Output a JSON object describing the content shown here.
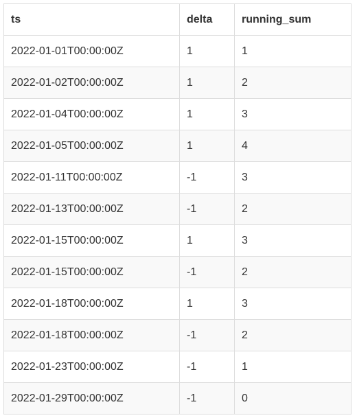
{
  "table": {
    "columns": [
      "ts",
      "delta",
      "running_sum"
    ],
    "rows": [
      [
        "2022-01-01T00:00:00Z",
        "1",
        "1"
      ],
      [
        "2022-01-02T00:00:00Z",
        "1",
        "2"
      ],
      [
        "2022-01-04T00:00:00Z",
        "1",
        "3"
      ],
      [
        "2022-01-05T00:00:00Z",
        "1",
        "4"
      ],
      [
        "2022-01-11T00:00:00Z",
        "-1",
        "3"
      ],
      [
        "2022-01-13T00:00:00Z",
        "-1",
        "2"
      ],
      [
        "2022-01-15T00:00:00Z",
        "1",
        "3"
      ],
      [
        "2022-01-15T00:00:00Z",
        "-1",
        "2"
      ],
      [
        "2022-01-18T00:00:00Z",
        "1",
        "3"
      ],
      [
        "2022-01-18T00:00:00Z",
        "-1",
        "2"
      ],
      [
        "2022-01-23T00:00:00Z",
        "-1",
        "1"
      ],
      [
        "2022-01-29T00:00:00Z",
        "-1",
        "0"
      ]
    ]
  }
}
